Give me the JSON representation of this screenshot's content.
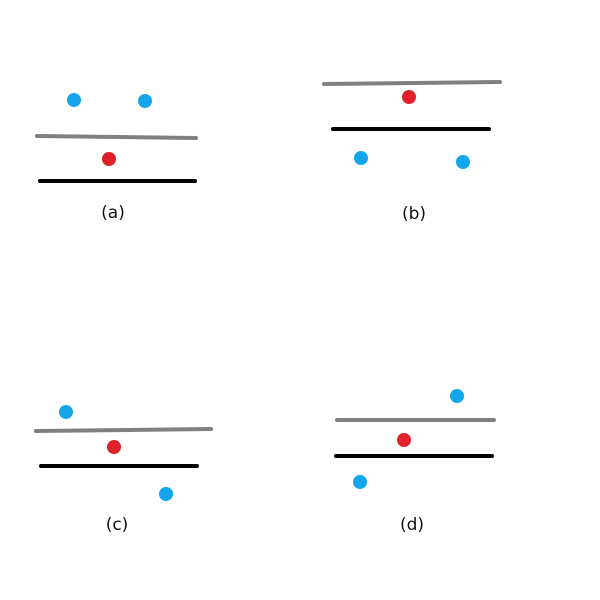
{
  "colors": {
    "gray_line": "#808080",
    "black_line": "#000000",
    "red_point": "#e0202a",
    "blue_point": "#13a6ea",
    "caption_text": "#111111"
  },
  "panels": [
    {
      "id": "a",
      "caption": "(a)",
      "blue_points": 2,
      "red_points": 1,
      "gray_lines": 1,
      "black_lines": 1
    },
    {
      "id": "b",
      "caption": "(b)",
      "blue_points": 2,
      "red_points": 1,
      "gray_lines": 1,
      "black_lines": 1
    },
    {
      "id": "c",
      "caption": "(c)",
      "blue_points": 2,
      "red_points": 1,
      "gray_lines": 1,
      "black_lines": 1
    },
    {
      "id": "d",
      "caption": "(d)",
      "blue_points": 2,
      "red_points": 1,
      "gray_lines": 1,
      "black_lines": 1
    }
  ]
}
